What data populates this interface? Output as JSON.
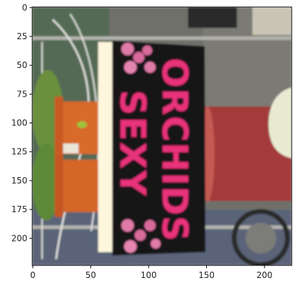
{
  "plot": {
    "type": "image-axes",
    "x_ticks": [
      0,
      50,
      100,
      150,
      200
    ],
    "y_ticks": [
      0,
      25,
      50,
      75,
      100,
      125,
      150,
      175,
      200
    ],
    "xlim": [
      -0.5,
      223.5
    ],
    "ylim": [
      223.5,
      -0.5
    ]
  },
  "photo": {
    "sign_text_line1": "ORCHIDS",
    "sign_text_line2": "SEXY",
    "sign_color": "#141414",
    "text_color": "#e8307a",
    "pot_color": "#d86a2c",
    "vase_color": "#a33a3a"
  }
}
